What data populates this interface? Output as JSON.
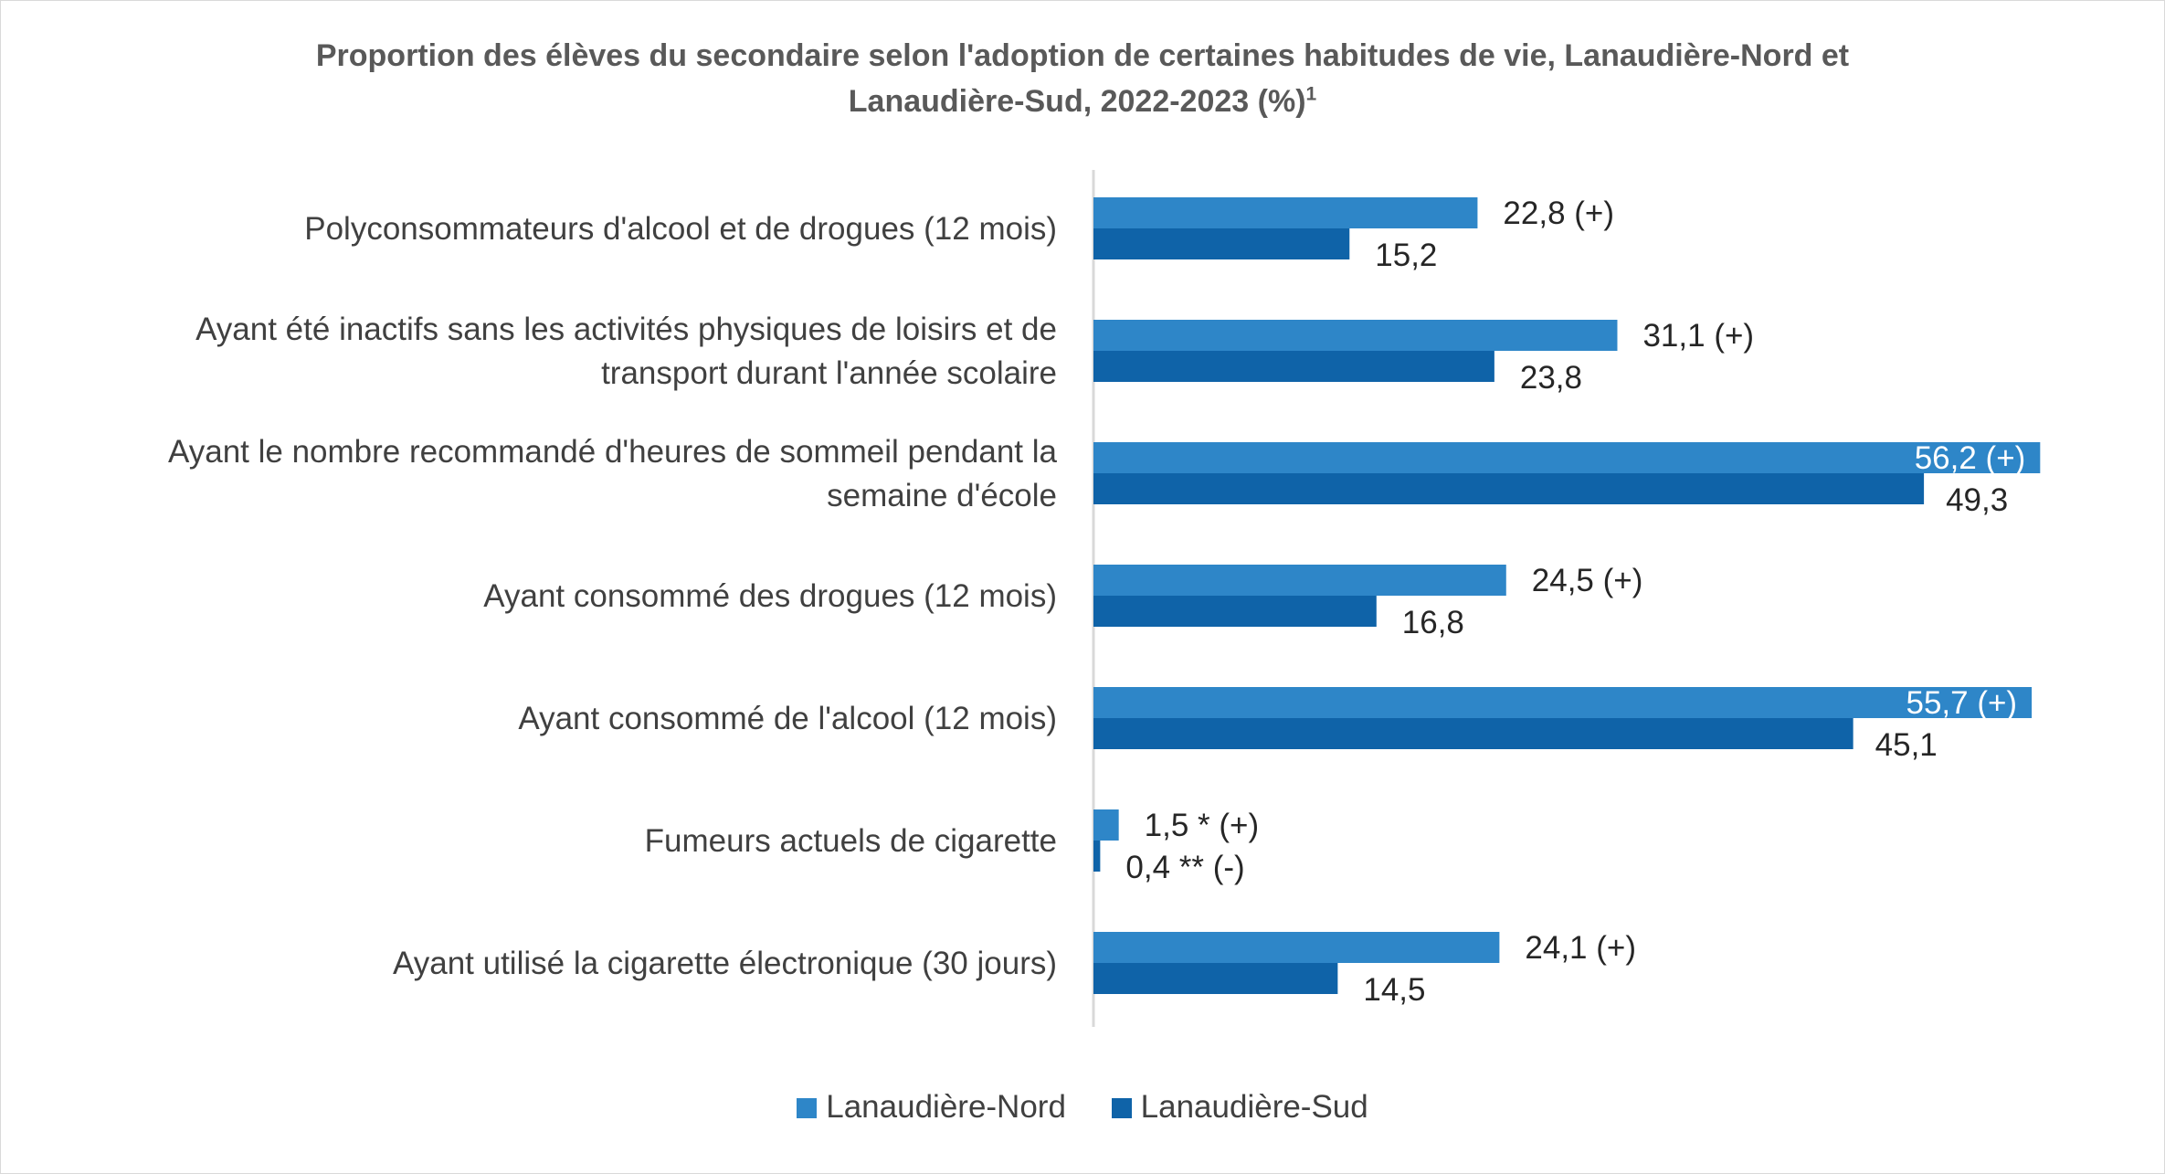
{
  "chart_data": {
    "type": "bar",
    "orientation": "horizontal",
    "title_line1": "Proportion des élèves du secondaire selon l'adoption de certaines habitudes de vie, Lanaudière-Nord et",
    "title_line2": "Lanaudière-Sud, 2022-2023 (%)",
    "title_sup": "1",
    "categories": [
      [
        "Polyconsommateurs d'alcool et de drogues (12 mois)"
      ],
      [
        "Ayant été inactifs sans les activités physiques de loisirs et de",
        "transport durant l'année scolaire"
      ],
      [
        "Ayant le nombre recommandé d'heures de sommeil pendant la",
        "semaine d'école"
      ],
      [
        "Ayant consommé des drogues (12 mois)"
      ],
      [
        "Ayant consommé de l'alcool (12 mois)"
      ],
      [
        "Fumeurs actuels de cigarette"
      ],
      [
        "Ayant utilisé la cigarette électronique (30 jours)"
      ]
    ],
    "series": [
      {
        "name": "Lanaudière-Nord",
        "color": "#2e86c8",
        "values": [
          22.8,
          31.1,
          56.2,
          24.5,
          55.7,
          1.5,
          24.1
        ],
        "labels": [
          "22,8 (+)",
          "31,1 (+)",
          "56,2 (+)",
          "24,5 (+)",
          "55,7 (+)",
          "1,5 * (+)",
          "24,1 (+)"
        ]
      },
      {
        "name": "Lanaudière-Sud",
        "color": "#0f63a8",
        "values": [
          15.2,
          23.8,
          49.3,
          16.8,
          45.1,
          0.4,
          14.5
        ],
        "labels": [
          "15,2",
          "23,8",
          "49,3",
          "16,8",
          "45,1",
          "0,4 ** (-)",
          "14,5"
        ]
      }
    ],
    "grid": false,
    "legend_position": "bottom"
  }
}
